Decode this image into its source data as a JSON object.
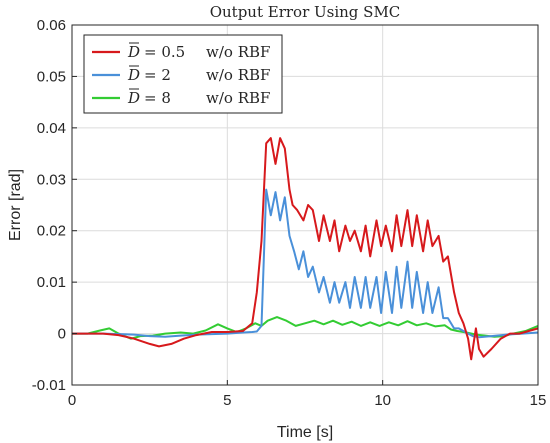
{
  "chart_data": {
    "type": "line",
    "title": "Output Error Using SMC",
    "xlabel": "Time [s]",
    "ylabel": "Error [rad]",
    "xlim": [
      0,
      15
    ],
    "ylim": [
      -0.01,
      0.06
    ],
    "xticks": [
      0,
      5,
      10,
      15
    ],
    "yticks": [
      -0.01,
      0,
      0.01,
      0.02,
      0.03,
      0.04,
      0.05,
      0.06
    ],
    "xtick_labels": [
      "0",
      "5",
      "10",
      "15"
    ],
    "ytick_labels": [
      "-0.01",
      "0",
      "0.01",
      "0.02",
      "0.03",
      "0.04",
      "0.05",
      "0.06"
    ],
    "grid": true,
    "legend_position": "top-left",
    "series": [
      {
        "name": "D̄ = 0.5  w/o RBF",
        "legend_var": "D",
        "legend_value": "= 0.5",
        "legend_suffix": "w/o RBF",
        "color": "#d7191c",
        "x": [
          0,
          0.5,
          1.0,
          1.5,
          2.0,
          2.5,
          2.8,
          3.2,
          3.6,
          4.0,
          4.5,
          5.0,
          5.5,
          5.8,
          5.95,
          6.1,
          6.25,
          6.4,
          6.55,
          6.7,
          6.85,
          7.0,
          7.1,
          7.25,
          7.45,
          7.6,
          7.75,
          7.95,
          8.1,
          8.3,
          8.45,
          8.6,
          8.8,
          8.95,
          9.1,
          9.3,
          9.45,
          9.6,
          9.8,
          9.95,
          10.1,
          10.3,
          10.45,
          10.6,
          10.8,
          10.95,
          11.1,
          11.3,
          11.45,
          11.6,
          11.8,
          11.95,
          12.1,
          12.3,
          12.45,
          12.6,
          12.75,
          12.85,
          13.0,
          13.1,
          13.25,
          13.5,
          13.8,
          14.1,
          14.4,
          14.7,
          15.0
        ],
        "y": [
          0,
          0,
          0,
          -0.0003,
          -0.001,
          -0.002,
          -0.0025,
          -0.002,
          -0.001,
          -0.0003,
          0.0003,
          0.0003,
          0.0005,
          0.002,
          0.008,
          0.018,
          0.037,
          0.038,
          0.033,
          0.038,
          0.036,
          0.028,
          0.025,
          0.024,
          0.022,
          0.025,
          0.024,
          0.018,
          0.023,
          0.018,
          0.022,
          0.016,
          0.021,
          0.018,
          0.02,
          0.016,
          0.021,
          0.015,
          0.022,
          0.017,
          0.021,
          0.016,
          0.023,
          0.017,
          0.024,
          0.017,
          0.023,
          0.016,
          0.022,
          0.017,
          0.019,
          0.014,
          0.015,
          0.008,
          0.004,
          0.002,
          -0.001,
          -0.005,
          0.001,
          -0.003,
          -0.0045,
          -0.003,
          -0.001,
          0,
          0,
          0.0005,
          0.001
        ]
      },
      {
        "name": "D̄ = 2     w/o RBF",
        "legend_var": "D",
        "legend_value": "= 2",
        "legend_suffix": "w/o RBF",
        "color": "#4a90d9",
        "x": [
          0,
          1.0,
          2.0,
          2.5,
          3.0,
          3.5,
          4.0,
          5.0,
          5.5,
          5.8,
          5.95,
          6.1,
          6.25,
          6.4,
          6.55,
          6.7,
          6.85,
          7.0,
          7.15,
          7.3,
          7.45,
          7.6,
          7.75,
          7.95,
          8.1,
          8.3,
          8.45,
          8.6,
          8.8,
          8.95,
          9.1,
          9.3,
          9.45,
          9.6,
          9.8,
          9.95,
          10.1,
          10.3,
          10.45,
          10.6,
          10.8,
          10.95,
          11.1,
          11.3,
          11.45,
          11.6,
          11.8,
          11.95,
          12.1,
          12.3,
          12.45,
          12.6,
          12.75,
          12.9,
          13.1,
          13.5,
          14.0,
          14.5,
          15.0
        ],
        "y": [
          0,
          0,
          -0.0002,
          -0.0005,
          -0.0006,
          -0.0004,
          -0.0002,
          0,
          0.0002,
          0.0003,
          0.0004,
          0.0015,
          0.028,
          0.023,
          0.0275,
          0.022,
          0.0265,
          0.019,
          0.016,
          0.0125,
          0.016,
          0.011,
          0.013,
          0.008,
          0.011,
          0.006,
          0.01,
          0.006,
          0.01,
          0.005,
          0.011,
          0.005,
          0.011,
          0.005,
          0.011,
          0.004,
          0.012,
          0.004,
          0.013,
          0.005,
          0.014,
          0.005,
          0.012,
          0.004,
          0.01,
          0.004,
          0.009,
          0.003,
          0.003,
          0.001,
          0.001,
          0.0005,
          0,
          -0.0005,
          -0.0007,
          -0.0005,
          -0.0002,
          0,
          0.0002
        ]
      },
      {
        "name": "D̄ = 8     w/o RBF",
        "legend_var": "D",
        "legend_value": "= 8",
        "legend_suffix": "w/o RBF",
        "color": "#33cc33",
        "x": [
          0,
          0.5,
          0.9,
          1.2,
          1.5,
          1.9,
          2.2,
          2.6,
          3.0,
          3.5,
          3.9,
          4.3,
          4.7,
          5.0,
          5.3,
          5.6,
          5.9,
          6.1,
          6.3,
          6.6,
          6.9,
          7.2,
          7.5,
          7.8,
          8.1,
          8.4,
          8.7,
          9.0,
          9.3,
          9.6,
          9.9,
          10.2,
          10.5,
          10.8,
          11.1,
          11.4,
          11.7,
          12.0,
          12.2,
          12.4,
          12.7,
          13.0,
          13.3,
          13.6,
          13.9,
          14.2,
          14.6,
          15.0
        ],
        "y": [
          0,
          0,
          0.0006,
          0.001,
          0,
          -0.001,
          -0.0005,
          -0.0004,
          0,
          0.0002,
          0,
          0.0006,
          0.0018,
          0.001,
          0.0003,
          0.001,
          0.002,
          0.0015,
          0.0025,
          0.0032,
          0.0025,
          0.0015,
          0.002,
          0.0025,
          0.0018,
          0.0025,
          0.0017,
          0.0023,
          0.0015,
          0.0022,
          0.0015,
          0.0022,
          0.0016,
          0.0024,
          0.0016,
          0.002,
          0.0014,
          0.0016,
          0.0008,
          0.0005,
          0.0002,
          -0.0002,
          -0.0004,
          -0.0006,
          -0.0005,
          0,
          0.0005,
          0.0015
        ]
      }
    ]
  }
}
